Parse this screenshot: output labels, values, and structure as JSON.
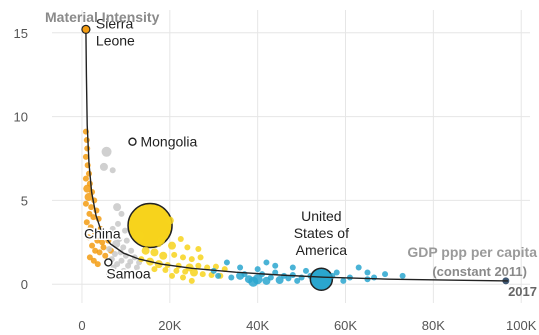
{
  "chart_data": {
    "type": "scatter",
    "title": "",
    "ylabel": "Material Intensity",
    "xlabel": "GDP ppp per capita",
    "xlabel_sub": "(constant 2011)",
    "year_label": "2017",
    "xlim": [
      -5000,
      102000
    ],
    "ylim": [
      -1,
      16
    ],
    "x_ticks": [
      0,
      20000,
      40000,
      60000,
      80000,
      100000
    ],
    "x_tick_labels": [
      "0",
      "20K",
      "40K",
      "60K",
      "80K",
      "100K"
    ],
    "y_ticks": [
      0,
      5,
      10,
      15
    ],
    "y_tick_labels": [
      "0",
      "5",
      "10",
      "15"
    ],
    "grid": true,
    "legend": "none",
    "colors": {
      "orange": "#f39c12",
      "gray": "#c8c8c8",
      "yellow": "#f7d31c",
      "teal": "#2aa6cf",
      "dark": "#1f3b5a",
      "line": "#222222"
    },
    "trend_line": [
      [
        900,
        15.2
      ],
      [
        1000,
        12.5
      ],
      [
        1200,
        9.5
      ],
      [
        1600,
        7.2
      ],
      [
        2200,
        5.5
      ],
      [
        3200,
        4.1
      ],
      [
        4500,
        3.1
      ],
      [
        6500,
        2.4
      ],
      [
        9500,
        1.85
      ],
      [
        13000,
        1.5
      ],
      [
        18000,
        1.2
      ],
      [
        25000,
        0.95
      ],
      [
        35000,
        0.72
      ],
      [
        45000,
        0.55
      ],
      [
        55000,
        0.42
      ],
      [
        70000,
        0.3
      ],
      [
        85000,
        0.24
      ],
      [
        97000,
        0.2
      ]
    ],
    "series": [
      {
        "color": "orange",
        "points": [
          [
            900,
            15.2,
            4
          ],
          [
            900,
            9.1,
            3
          ],
          [
            1100,
            8.6,
            3
          ],
          [
            1200,
            8.1,
            3
          ],
          [
            900,
            7.6,
            3
          ],
          [
            1300,
            7.1,
            3
          ],
          [
            1600,
            6.6,
            3
          ],
          [
            900,
            6.3,
            3
          ],
          [
            1800,
            6.0,
            3
          ],
          [
            1200,
            5.7,
            4
          ],
          [
            2300,
            5.5,
            3
          ],
          [
            1500,
            5.2,
            4
          ],
          [
            2800,
            5.0,
            3
          ],
          [
            900,
            4.8,
            3
          ],
          [
            2100,
            4.6,
            3
          ],
          [
            3300,
            4.4,
            3
          ],
          [
            1700,
            4.2,
            3
          ],
          [
            2600,
            4.0,
            3
          ],
          [
            3800,
            3.9,
            3
          ],
          [
            1100,
            3.7,
            3
          ],
          [
            2000,
            3.4,
            3
          ],
          [
            4200,
            3.3,
            3
          ],
          [
            2900,
            3.1,
            3
          ],
          [
            1500,
            2.8,
            3
          ],
          [
            3500,
            2.6,
            3
          ],
          [
            4600,
            2.5,
            3
          ],
          [
            2300,
            2.3,
            3
          ],
          [
            3000,
            2.0,
            3
          ],
          [
            4000,
            1.9,
            3
          ],
          [
            1800,
            1.6,
            3
          ],
          [
            2700,
            1.4,
            3
          ],
          [
            3600,
            1.2,
            3
          ],
          [
            4900,
            2.2,
            3
          ],
          [
            5300,
            1.7,
            3
          ],
          [
            6000,
            2.6,
            3
          ],
          [
            6600,
            2.0,
            3
          ],
          [
            7200,
            3.0,
            3
          ]
        ]
      },
      {
        "color": "gray",
        "points": [
          [
            5600,
            7.9,
            5
          ],
          [
            5000,
            7.0,
            4
          ],
          [
            7000,
            6.8,
            3
          ],
          [
            8000,
            4.6,
            4
          ],
          [
            9000,
            4.2,
            3
          ],
          [
            8200,
            3.6,
            3
          ],
          [
            7000,
            3.3,
            3
          ],
          [
            9800,
            3.2,
            3
          ],
          [
            6500,
            2.8,
            3
          ],
          [
            8500,
            2.7,
            3
          ],
          [
            10200,
            2.6,
            3
          ],
          [
            7800,
            2.4,
            4
          ],
          [
            9400,
            2.2,
            3
          ],
          [
            6200,
            2.1,
            3
          ],
          [
            11200,
            2.0,
            3
          ],
          [
            8800,
            1.9,
            3
          ],
          [
            7500,
            1.8,
            3
          ],
          [
            10000,
            1.7,
            3
          ],
          [
            12000,
            1.6,
            3
          ],
          [
            6800,
            1.5,
            3
          ],
          [
            9000,
            1.4,
            3
          ],
          [
            11000,
            1.35,
            3
          ],
          [
            13000,
            1.3,
            3
          ],
          [
            8000,
            1.2,
            3
          ],
          [
            10500,
            1.1,
            3
          ],
          [
            12500,
            1.0,
            3
          ],
          [
            7200,
            1.0,
            3
          ],
          [
            9500,
            0.8,
            3
          ],
          [
            6200,
            0.6,
            3
          ]
        ]
      },
      {
        "color": "yellow",
        "points": [
          [
            15500,
            3.5,
            22
          ],
          [
            20000,
            3.8,
            4
          ],
          [
            13000,
            2.9,
            5
          ],
          [
            18000,
            2.6,
            4
          ],
          [
            20500,
            2.3,
            4
          ],
          [
            22500,
            2.7,
            3
          ],
          [
            24000,
            2.2,
            3
          ],
          [
            14500,
            2.0,
            4
          ],
          [
            16500,
            1.9,
            4
          ],
          [
            18500,
            1.7,
            4
          ],
          [
            21000,
            1.75,
            3
          ],
          [
            23000,
            1.6,
            3
          ],
          [
            25000,
            1.5,
            3
          ],
          [
            27000,
            1.6,
            3
          ],
          [
            13500,
            1.5,
            3
          ],
          [
            15500,
            1.35,
            4
          ],
          [
            17500,
            1.2,
            4
          ],
          [
            19500,
            1.15,
            3
          ],
          [
            22000,
            1.1,
            3
          ],
          [
            24500,
            1.0,
            4
          ],
          [
            26500,
            1.1,
            3
          ],
          [
            28500,
            1.0,
            3
          ],
          [
            30500,
            1.05,
            3
          ],
          [
            16500,
            0.9,
            3
          ],
          [
            19000,
            0.85,
            3
          ],
          [
            21500,
            0.8,
            3
          ],
          [
            23500,
            0.75,
            3
          ],
          [
            25500,
            0.7,
            4
          ],
          [
            27500,
            0.6,
            3
          ],
          [
            29500,
            0.55,
            3
          ],
          [
            31500,
            0.5,
            3
          ],
          [
            32500,
            0.9,
            3
          ],
          [
            20500,
            0.5,
            3
          ],
          [
            23000,
            0.4,
            3
          ],
          [
            25000,
            0.2,
            3
          ],
          [
            26500,
            2.1,
            3
          ],
          [
            17500,
            2.4,
            3
          ]
        ]
      },
      {
        "color": "teal",
        "points": [
          [
            30000,
            0.8,
            3
          ],
          [
            31000,
            0.5,
            3
          ],
          [
            33000,
            1.3,
            3
          ],
          [
            34000,
            0.4,
            3
          ],
          [
            36000,
            0.5,
            4
          ],
          [
            37000,
            0.6,
            3
          ],
          [
            38000,
            0.3,
            4
          ],
          [
            39000,
            0.15,
            5
          ],
          [
            40000,
            0.3,
            5
          ],
          [
            41000,
            0.6,
            3
          ],
          [
            42000,
            0.2,
            4
          ],
          [
            43000,
            0.4,
            3
          ],
          [
            44000,
            0.7,
            3
          ],
          [
            45000,
            0.25,
            4
          ],
          [
            46000,
            0.5,
            3
          ],
          [
            47000,
            0.35,
            3
          ],
          [
            48000,
            0.55,
            3
          ],
          [
            49000,
            0.2,
            3
          ],
          [
            50000,
            0.4,
            3
          ],
          [
            51000,
            0.8,
            3
          ],
          [
            52000,
            0.5,
            3
          ],
          [
            53000,
            0.6,
            3
          ],
          [
            54500,
            0.3,
            11
          ],
          [
            57000,
            0.5,
            3
          ],
          [
            58000,
            0.7,
            3
          ],
          [
            59500,
            0.2,
            3
          ],
          [
            61000,
            0.4,
            3
          ],
          [
            63000,
            1.0,
            3
          ],
          [
            65000,
            0.7,
            3
          ],
          [
            65000,
            0.3,
            3
          ],
          [
            66500,
            0.4,
            3
          ],
          [
            69000,
            0.6,
            3
          ],
          [
            73000,
            0.5,
            3
          ],
          [
            42000,
            1.3,
            3
          ],
          [
            48000,
            1.0,
            3
          ],
          [
            36000,
            1.0,
            3
          ],
          [
            40000,
            0.9,
            3
          ],
          [
            44000,
            1.1,
            3
          ]
        ]
      },
      {
        "color": "dark",
        "points": [
          [
            96500,
            0.2,
            4
          ]
        ]
      }
    ],
    "annotations": [
      {
        "lines": [
          "Sierra",
          "Leone"
        ],
        "x": 900,
        "y": 15.2,
        "marker": "orange-filled"
      },
      {
        "lines": [
          "Mongolia"
        ],
        "x": 11500,
        "y": 8.5,
        "marker": "hollow"
      },
      {
        "lines": [
          "China"
        ],
        "x": 15500,
        "y": 3.5,
        "marker": "none"
      },
      {
        "lines": [
          "Samoa"
        ],
        "x": 6000,
        "y": 1.3,
        "marker": "hollow"
      },
      {
        "lines": [
          "United",
          "States of",
          "America"
        ],
        "x": 54500,
        "y": 0.3,
        "marker": "none"
      }
    ]
  }
}
